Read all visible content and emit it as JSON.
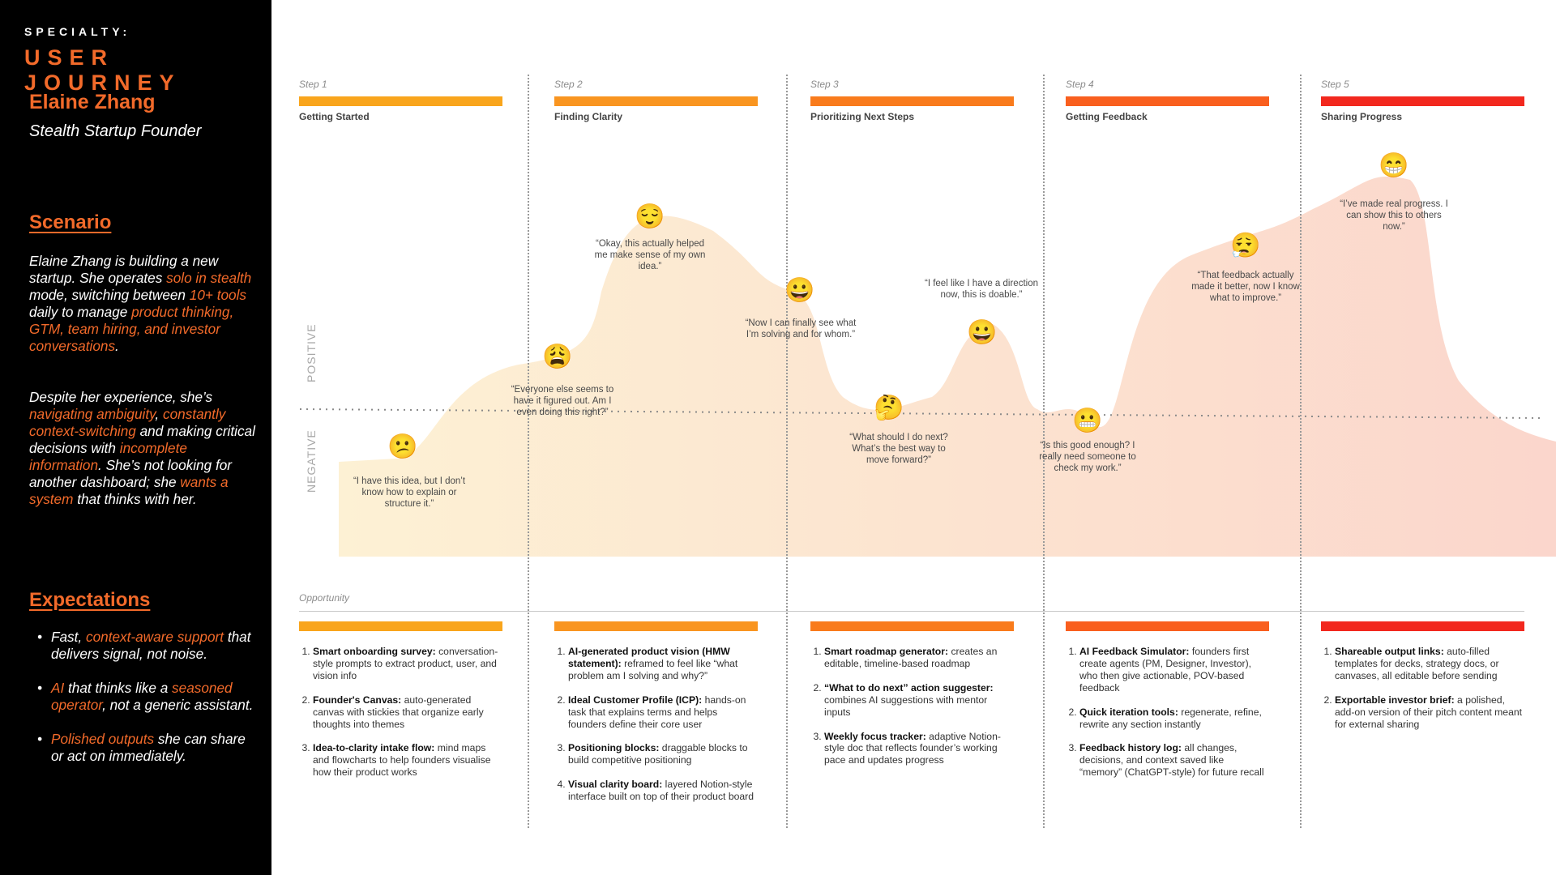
{
  "sidebar": {
    "kicker": "SPECIALTY:",
    "title": "USER JOURNEY",
    "persona_name": "Elaine Zhang",
    "persona_role": "Stealth Startup Founder",
    "scenario_heading": "Scenario",
    "scenario_p1": [
      {
        "t": "Elaine Zhang is building a new startup. She operates ",
        "h": false
      },
      {
        "t": "solo in stealth",
        "h": true
      },
      {
        "t": " mode, switching between ",
        "h": false
      },
      {
        "t": "10+ tools",
        "h": true
      },
      {
        "t": " daily to manage ",
        "h": false
      },
      {
        "t": "product thinking, GTM, team hiring, and investor conversations",
        "h": true
      },
      {
        "t": ".",
        "h": false
      }
    ],
    "scenario_p2": [
      {
        "t": "Despite her experience, she’s ",
        "h": false
      },
      {
        "t": "navigating ambiguity",
        "h": true
      },
      {
        "t": ", ",
        "h": false
      },
      {
        "t": "constantly context-switching",
        "h": true
      },
      {
        "t": " and making critical decisions with ",
        "h": false
      },
      {
        "t": "incomplete information",
        "h": true
      },
      {
        "t": ". She’s not looking for another dashboard; she ",
        "h": false
      },
      {
        "t": "wants a system",
        "h": true
      },
      {
        "t": " that thinks with her.",
        "h": false
      }
    ],
    "expectations_heading": "Expectations",
    "expectations": [
      [
        {
          "t": "Fast, ",
          "h": false
        },
        {
          "t": "context-aware support",
          "h": true
        },
        {
          "t": " that delivers signal, not noise.",
          "h": false
        }
      ],
      [
        {
          "t": "AI",
          "h": true
        },
        {
          "t": " that thinks like a ",
          "h": false
        },
        {
          "t": "seasoned operator",
          "h": true
        },
        {
          "t": ", not a generic assistant.",
          "h": false
        }
      ],
      [
        {
          "t": "Polished outputs",
          "h": true
        },
        {
          "t": " she can share or act on immediately.",
          "h": false
        }
      ]
    ]
  },
  "axis": {
    "positive": "POSITIVE",
    "negative": "NEGATIVE"
  },
  "steps": [
    {
      "label": "Step 1",
      "name": "Getting Started",
      "color": "#f9a51c"
    },
    {
      "label": "Step 2",
      "name": "Finding Clarity",
      "color": "#f99520"
    },
    {
      "label": "Step 3",
      "name": "Prioritizing Next Steps",
      "color": "#f97b1c"
    },
    {
      "label": "Step 4",
      "name": "Getting Feedback",
      "color": "#f95f1e"
    },
    {
      "label": "Step 5",
      "name": "Sharing Progress",
      "color": "#f2281e"
    }
  ],
  "emotions": [
    {
      "emoji": "😕",
      "quote": "“I have this idea, but I don’t know how to explain or structure it.”"
    },
    {
      "emoji": "😩",
      "quote": "“Everyone else seems to have it figured out. Am I even doing this right?”"
    },
    {
      "emoji": "😌",
      "quote": "“Okay, this actually helped me make sense of my own idea.”"
    },
    {
      "emoji": "😀",
      "quote": "“Now I can finally see what I’m solving and for whom.”"
    },
    {
      "emoji": "🤔",
      "quote": "“What should I do next? What’s the best way to move forward?”"
    },
    {
      "emoji": "😀",
      "quote": "“I feel like I have a direction now, this is doable.”"
    },
    {
      "emoji": "😬",
      "quote": "“Is this good enough? I really need someone to check my work.”"
    },
    {
      "emoji": "😮‍💨",
      "quote": "“That feedback actually made it better, now I know what to improve.”"
    },
    {
      "emoji": "😁",
      "quote": "“I’ve made real progress. I can show this to others now.”"
    }
  ],
  "opportunity_label": "Opportunity",
  "opportunities": [
    [
      {
        "b": "Smart onboarding survey:",
        "t": " conversation-style prompts to extract product, user, and vision info"
      },
      {
        "b": "Founder's Canvas:",
        "t": " auto-generated canvas with stickies that organize early thoughts into themes"
      },
      {
        "b": "Idea-to-clarity intake flow:",
        "t": " mind maps and flowcharts to help founders visualise how their product works"
      }
    ],
    [
      {
        "b": "AI-generated product vision (HMW statement):",
        "t": " reframed to feel like “what problem am I solving and why?”"
      },
      {
        "b": "Ideal Customer Profile (ICP):",
        "t": " hands-on task that explains terms and helps founders define their core user"
      },
      {
        "b": "Positioning blocks:",
        "t": " draggable blocks to build competitive positioning"
      },
      {
        "b": "Visual clarity board:",
        "t": " layered Notion-style interface built on top of their product board"
      }
    ],
    [
      {
        "b": "Smart roadmap generator:",
        "t": " creates an editable, timeline-based roadmap"
      },
      {
        "b": "“What to do next” action suggester:",
        "t": " combines AI suggestions with mentor inputs"
      },
      {
        "b": "Weekly focus tracker:",
        "t": " adaptive Notion-style doc that reflects founder’s working pace and updates progress"
      }
    ],
    [
      {
        "b": "AI Feedback Simulator:",
        "t": " founders first create agents (PM, Designer, Investor), who then give actionable, POV-based feedback"
      },
      {
        "b": "Quick iteration tools:",
        "t": " regenerate, refine, rewrite any section instantly"
      },
      {
        "b": "Feedback history log:",
        "t": " all changes, decisions, and context saved like “memory” (ChatGPT-style) for future recall"
      }
    ],
    [
      {
        "b": "Shareable output links:",
        "t": " auto-filled templates for decks, strategy docs, or canvases, all editable before sending"
      },
      {
        "b": "Exportable investor brief:",
        "t": " a polished, add-on version of their pitch content meant for external sharing"
      }
    ]
  ],
  "colors": {
    "accent": "#f26a2a",
    "curve_start": "#fdf1d4",
    "curve_end": "#fbd6cc"
  }
}
